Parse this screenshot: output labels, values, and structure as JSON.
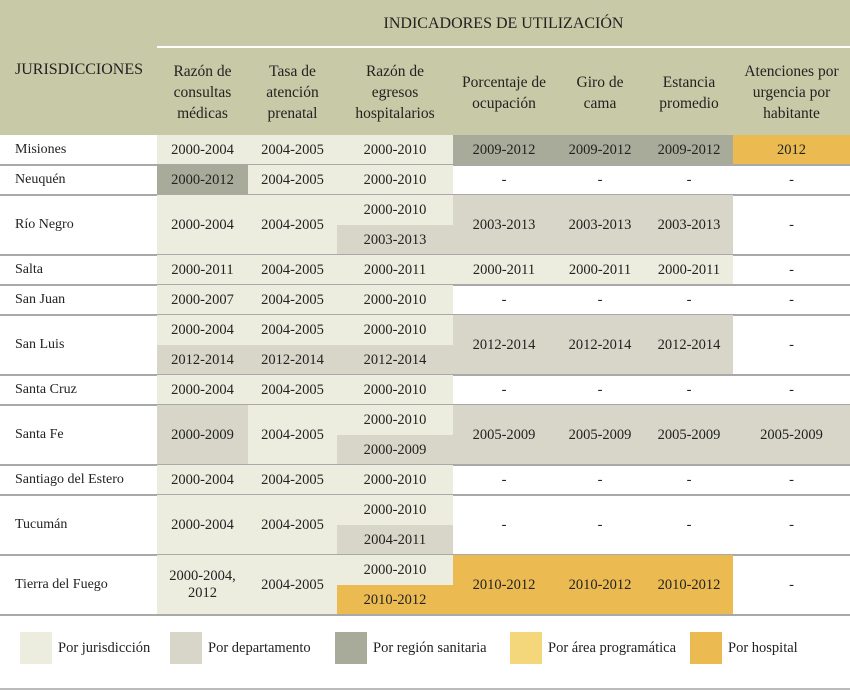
{
  "header": {
    "title": "INDICADORES DE UTILIZACIÓN",
    "row_header": "JURISDICCIONES",
    "columns": [
      "Razón de consultas médicas",
      "Tasa de atención prenatal",
      "Razón de egresos hospitalarios",
      "Porcentaje de ocupación",
      "Giro de cama",
      "Estancia promedio",
      "Atenciones por urgencia por habitante"
    ]
  },
  "rows": [
    {
      "jurisdiction": "Misiones",
      "cells": [
        {
          "text": "2000-2004",
          "color": "#ecedde"
        },
        {
          "text": "2004-2005",
          "color": "#ecedde"
        },
        {
          "text": "2000-2010",
          "color": "#ecedde"
        },
        {
          "text": "2009-2012",
          "color": "#a8ab9a"
        },
        {
          "text": "2009-2012",
          "color": "#a8ab9a"
        },
        {
          "text": "2009-2012",
          "color": "#a8ab9a"
        },
        {
          "text": "2012",
          "color": "#ebbb51"
        }
      ]
    },
    {
      "jurisdiction": "Neuquén",
      "cells": [
        {
          "text": "2000-2012",
          "color": "#a8ab9a"
        },
        {
          "text": "2004-2005",
          "color": "#ecedde"
        },
        {
          "text": "2000-2010",
          "color": "#ecedde"
        },
        {
          "text": "-"
        },
        {
          "text": "-"
        },
        {
          "text": "-"
        },
        {
          "text": "-"
        }
      ]
    },
    {
      "jurisdiction": "Río Negro",
      "cells": [
        {
          "text": "2000-2004",
          "color": "#ecedde"
        },
        {
          "text": "2004-2005",
          "color": "#ecedde"
        },
        [
          {
            "text": "2000-2010",
            "color": "#ecedde"
          },
          {
            "text": "2003-2013",
            "color": "#d7d6c9"
          }
        ],
        {
          "text": "2003-2013",
          "color": "#d7d6c9"
        },
        {
          "text": "2003-2013",
          "color": "#d7d6c9"
        },
        {
          "text": "2003-2013",
          "color": "#d7d6c9"
        },
        {
          "text": "-"
        }
      ]
    },
    {
      "jurisdiction": "Salta",
      "cells": [
        {
          "text": "2000-2011",
          "color": "#ecedde"
        },
        {
          "text": "2004-2005",
          "color": "#ecedde"
        },
        {
          "text": "2000-2011",
          "color": "#ecedde"
        },
        {
          "text": "2000-2011",
          "color": "#ecedde"
        },
        {
          "text": "2000-2011",
          "color": "#ecedde"
        },
        {
          "text": "2000-2011",
          "color": "#ecedde"
        },
        {
          "text": "-"
        }
      ]
    },
    {
      "jurisdiction": "San Juan",
      "cells": [
        {
          "text": "2000-2007",
          "color": "#ecedde"
        },
        {
          "text": "2004-2005",
          "color": "#ecedde"
        },
        {
          "text": "2000-2010",
          "color": "#ecedde"
        },
        {
          "text": "-"
        },
        {
          "text": "-"
        },
        {
          "text": "-"
        },
        {
          "text": "-"
        }
      ]
    },
    {
      "jurisdiction": "San Luis",
      "cells": [
        [
          {
            "text": "2000-2004",
            "color": "#ecedde"
          },
          {
            "text": "2012-2014",
            "color": "#d7d6c9"
          }
        ],
        [
          {
            "text": "2004-2005",
            "color": "#ecedde"
          },
          {
            "text": "2012-2014",
            "color": "#d7d6c9"
          }
        ],
        [
          {
            "text": "2000-2010",
            "color": "#ecedde"
          },
          {
            "text": "2012-2014",
            "color": "#d7d6c9"
          }
        ],
        {
          "text": "2012-2014",
          "color": "#d7d6c9"
        },
        {
          "text": "2012-2014",
          "color": "#d7d6c9"
        },
        {
          "text": "2012-2014",
          "color": "#d7d6c9"
        },
        {
          "text": "-"
        }
      ]
    },
    {
      "jurisdiction": "Santa Cruz",
      "cells": [
        {
          "text": "2000-2004",
          "color": "#ecedde"
        },
        {
          "text": "2004-2005",
          "color": "#ecedde"
        },
        {
          "text": "2000-2010",
          "color": "#ecedde"
        },
        {
          "text": "-"
        },
        {
          "text": "-"
        },
        {
          "text": "-"
        },
        {
          "text": "-"
        }
      ]
    },
    {
      "jurisdiction": "Santa Fe",
      "cells": [
        {
          "text": "2000-2009",
          "color": "#d7d6c9"
        },
        {
          "text": "2004-2005",
          "color": "#ecedde"
        },
        [
          {
            "text": "2000-2010",
            "color": "#ecedde"
          },
          {
            "text": "2000-2009",
            "color": "#d7d6c9"
          }
        ],
        {
          "text": "2005-2009",
          "color": "#d7d6c9"
        },
        {
          "text": "2005-2009",
          "color": "#d7d6c9"
        },
        {
          "text": "2005-2009",
          "color": "#d7d6c9"
        },
        {
          "text": "2005-2009",
          "color": "#d7d6c9"
        }
      ]
    },
    {
      "jurisdiction": "Santiago del Estero",
      "cells": [
        {
          "text": "2000-2004",
          "color": "#ecedde"
        },
        {
          "text": "2004-2005",
          "color": "#ecedde"
        },
        {
          "text": "2000-2010",
          "color": "#ecedde"
        },
        {
          "text": "-"
        },
        {
          "text": "-"
        },
        {
          "text": "-"
        },
        {
          "text": "-"
        }
      ]
    },
    {
      "jurisdiction": "Tucumán",
      "cells": [
        {
          "text": "2000-2004",
          "color": "#ecedde"
        },
        {
          "text": "2004-2005",
          "color": "#ecedde"
        },
        [
          {
            "text": "2000-2010",
            "color": "#ecedde"
          },
          {
            "text": "2004-2011",
            "color": "#d7d6c9"
          }
        ],
        {
          "text": "-"
        },
        {
          "text": "-"
        },
        {
          "text": "-"
        },
        {
          "text": "-"
        }
      ]
    },
    {
      "jurisdiction": "Tierra del Fuego",
      "cells": [
        {
          "text": "2000-2004, 2012",
          "color": "#ecedde"
        },
        {
          "text": "2004-2005",
          "color": "#ecedde"
        },
        [
          {
            "text": "2000-2010",
            "color": "#ecedde"
          },
          {
            "text": "2010-2012",
            "color": "#ebbb51"
          }
        ],
        {
          "text": "2010-2012",
          "color": "#ebbb51"
        },
        {
          "text": "2010-2012",
          "color": "#ebbb51"
        },
        {
          "text": "2010-2012",
          "color": "#ebbb51"
        },
        {
          "text": "-"
        }
      ]
    }
  ],
  "legend": [
    {
      "label": "Por jurisdicción",
      "color": "#ecedde"
    },
    {
      "label": "Por departamento",
      "color": "#d7d6c9"
    },
    {
      "label": "Por región sanitaria",
      "color": "#a8ab9a"
    },
    {
      "label": "Por área programática",
      "color": "#f4d67b"
    },
    {
      "label": "Por hospital",
      "color": "#ebbb51"
    }
  ]
}
